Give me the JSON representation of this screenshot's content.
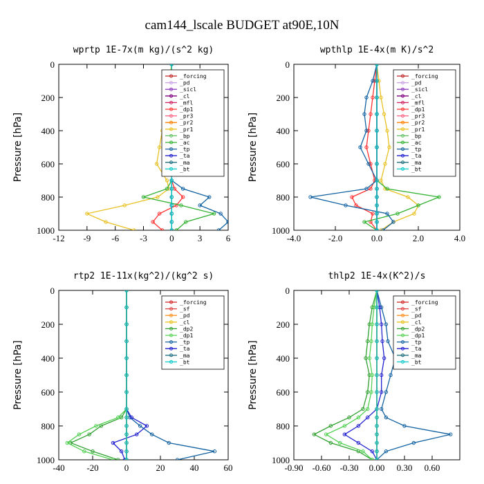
{
  "figure_title": "cam144_lscale  BUDGET at90E,10N",
  "chart_data": [
    {
      "type": "line",
      "title": "wprtp  1E-7x(m kg)/(s^2 kg)",
      "ylabel": "Pressure [hPa]",
      "xlim": [
        -12,
        6
      ],
      "ylim": [
        1000,
        0
      ],
      "xticks": [
        "-12",
        "-9",
        "-6",
        "-3",
        "0",
        "3",
        "6"
      ],
      "yticks": [
        "0",
        "200",
        "400",
        "600",
        "800",
        "1000"
      ],
      "legend_position": "top-right",
      "y": [
        0,
        100,
        200,
        300,
        400,
        500,
        600,
        700,
        750,
        800,
        850,
        900,
        950,
        1000
      ],
      "series": [
        {
          "name": "_forcing",
          "color": "#c02020",
          "values": [
            0,
            0,
            0,
            0,
            0,
            0,
            0,
            0,
            0,
            0,
            0,
            0,
            0,
            0
          ]
        },
        {
          "name": "_pd",
          "color": "#c8a0e8",
          "values": [
            0,
            0,
            0,
            0,
            0,
            0,
            0,
            0,
            0,
            0,
            0,
            0,
            0,
            0
          ]
        },
        {
          "name": "_sicl",
          "color": "#9040c0",
          "values": [
            0,
            0,
            0,
            0,
            0,
            0,
            0,
            0,
            0,
            0,
            0,
            0,
            0,
            0
          ]
        },
        {
          "name": "_cl",
          "color": "#800080",
          "values": [
            0,
            0,
            0,
            0,
            0,
            0,
            0,
            0,
            0,
            0,
            0,
            0,
            0,
            0
          ]
        },
        {
          "name": "_mfl",
          "color": "#d02060",
          "values": [
            0,
            0,
            0,
            0,
            0,
            0,
            0,
            0,
            0,
            0,
            0,
            0,
            0,
            0
          ]
        },
        {
          "name": "_dp1",
          "color": "#ff3030",
          "values": [
            0,
            0,
            0,
            0,
            0,
            0,
            0,
            0,
            0.3,
            1.2,
            0.5,
            -1.3,
            -2,
            -1
          ]
        },
        {
          "name": "_pr3",
          "color": "#ff6080",
          "values": [
            0,
            0,
            0,
            0,
            0,
            0,
            0,
            0,
            0,
            0,
            0,
            0,
            0,
            0
          ]
        },
        {
          "name": "_pr2",
          "color": "#ff8000",
          "values": [
            0,
            0,
            0,
            0,
            0,
            0,
            0,
            0,
            0,
            0,
            0,
            0,
            0,
            0
          ]
        },
        {
          "name": "_pr1",
          "color": "#e8c020",
          "values": [
            0,
            -0.3,
            -0.5,
            -0.7,
            -1,
            -1.3,
            -1.6,
            -0.5,
            -0.3,
            -1.5,
            -5,
            -9,
            -7,
            -4
          ]
        },
        {
          "name": "_bp",
          "color": "#60c060",
          "values": [
            0,
            0,
            0,
            0,
            0,
            0,
            0,
            0,
            0,
            0,
            0,
            0,
            0,
            0
          ]
        },
        {
          "name": "_ac",
          "color": "#30b030",
          "values": [
            0,
            0,
            0,
            0,
            0,
            0,
            0,
            0,
            -0.5,
            -3,
            1,
            4.5,
            1.5,
            0.5
          ]
        },
        {
          "name": "_tp",
          "color": "#1060a0",
          "values": [
            0,
            0,
            0,
            0,
            0,
            0,
            0,
            0,
            1.2,
            4,
            3,
            5.2,
            6,
            5
          ]
        },
        {
          "name": "_ta",
          "color": "#2020d0",
          "values": [
            0,
            0,
            0,
            0,
            0,
            0,
            0,
            0,
            0,
            0,
            0,
            0,
            0,
            0
          ]
        },
        {
          "name": "_ma",
          "color": "#207080",
          "values": [
            0,
            0,
            0,
            0,
            0,
            0,
            0,
            0,
            0,
            0,
            0,
            0,
            0,
            0
          ]
        },
        {
          "name": "_bt",
          "color": "#00c8c8",
          "values": [
            0,
            0,
            0,
            0,
            0,
            0,
            0,
            0,
            0,
            0,
            0,
            0,
            0,
            0
          ]
        }
      ]
    },
    {
      "type": "line",
      "title": "wpthlp  1E-4x(m K)/s^2",
      "ylabel": "Pressure [hPa]",
      "xlim": [
        -4,
        4
      ],
      "ylim": [
        1000,
        0
      ],
      "xticks": [
        "-4.0",
        "-2.0",
        "0.0",
        "2.0",
        "4.0"
      ],
      "yticks": [
        "0",
        "200",
        "400",
        "600",
        "800",
        "1000"
      ],
      "legend_position": "top-right",
      "y": [
        0,
        100,
        200,
        300,
        400,
        500,
        600,
        700,
        750,
        800,
        850,
        900,
        950,
        1000
      ],
      "series": [
        {
          "name": "_forcing",
          "color": "#c02020",
          "values": [
            0,
            0,
            0,
            0,
            0,
            0,
            0,
            0,
            0,
            0,
            0,
            0,
            0,
            0
          ]
        },
        {
          "name": "_pd",
          "color": "#c8a0e8",
          "values": [
            0,
            0,
            0,
            0,
            0,
            0,
            0,
            0,
            0,
            0,
            0,
            0,
            0,
            0
          ]
        },
        {
          "name": "_sicl",
          "color": "#9040c0",
          "values": [
            0,
            0,
            0,
            0,
            0,
            0,
            0,
            0,
            0,
            0,
            0,
            0,
            0,
            0
          ]
        },
        {
          "name": "_cl",
          "color": "#800080",
          "values": [
            0,
            0,
            0,
            0,
            0,
            0,
            0,
            0,
            0,
            0,
            0,
            0,
            0,
            0
          ]
        },
        {
          "name": "_mfl",
          "color": "#d02060",
          "values": [
            0,
            0,
            0,
            0,
            0,
            0,
            0,
            0,
            0,
            0,
            0,
            0,
            0,
            0
          ]
        },
        {
          "name": "_dp1",
          "color": "#ff3030",
          "values": [
            0,
            -0.1,
            -0.2,
            -0.3,
            -0.4,
            -0.5,
            -0.3,
            -0.1,
            -0.3,
            -1.2,
            -1,
            -0.2,
            -0.3,
            0
          ]
        },
        {
          "name": "_pr3",
          "color": "#ff6080",
          "values": [
            0,
            0,
            0,
            0,
            0,
            0,
            0,
            0,
            0,
            0,
            0,
            0,
            0,
            0
          ]
        },
        {
          "name": "_pr2",
          "color": "#ff8000",
          "values": [
            0,
            0,
            0,
            0,
            0,
            0,
            0,
            0,
            0,
            0,
            0,
            0,
            0,
            0
          ]
        },
        {
          "name": "_pr1",
          "color": "#e8c020",
          "values": [
            0,
            0.1,
            0.2,
            0.35,
            0.5,
            0.6,
            0.4,
            0.2,
            0.4,
            1.5,
            2,
            1.8,
            0.8,
            0.2
          ]
        },
        {
          "name": "_bp",
          "color": "#60c060",
          "values": [
            0,
            0,
            0,
            0,
            0,
            0,
            0,
            0,
            0,
            0,
            0,
            0,
            0,
            0
          ]
        },
        {
          "name": "_ac",
          "color": "#30b030",
          "values": [
            0,
            0,
            0,
            0,
            0,
            0,
            0,
            0,
            0.5,
            3,
            2,
            1,
            -0.6,
            0
          ]
        },
        {
          "name": "_tp",
          "color": "#1060a0",
          "values": [
            0,
            -0.2,
            -0.5,
            -0.6,
            -0.5,
            -0.8,
            -0.4,
            0,
            -0.5,
            -3.2,
            -1.5,
            0.5,
            0.8,
            0.3
          ]
        },
        {
          "name": "_ta",
          "color": "#2020d0",
          "values": [
            0,
            0,
            0,
            0,
            0,
            0,
            0,
            0,
            0,
            0,
            0,
            0,
            0,
            0
          ]
        },
        {
          "name": "_ma",
          "color": "#207080",
          "values": [
            0,
            0,
            0,
            0,
            0,
            0,
            0,
            0,
            0,
            0,
            0,
            0,
            0,
            0
          ]
        },
        {
          "name": "_bt",
          "color": "#00c8c8",
          "values": [
            0,
            0,
            0,
            0,
            0,
            0,
            0,
            0,
            0,
            0,
            0,
            0,
            0,
            0
          ]
        }
      ]
    },
    {
      "type": "line",
      "title": "rtp2  1E-11x(kg^2)/(kg^2 s)",
      "ylabel": "Pressure [hPa]",
      "xlim": [
        -40,
        60
      ],
      "ylim": [
        1000,
        0
      ],
      "xticks": [
        "-40",
        "-20",
        "0",
        "20",
        "40",
        "60"
      ],
      "yticks": [
        "0",
        "200",
        "400",
        "600",
        "800",
        "1000"
      ],
      "legend_position": "top-right",
      "y": [
        0,
        100,
        200,
        300,
        400,
        500,
        600,
        700,
        750,
        800,
        850,
        900,
        950,
        1000
      ],
      "series": [
        {
          "name": "_forcing",
          "color": "#d02020",
          "values": [
            0,
            0,
            0,
            0,
            0,
            0,
            0,
            0,
            0,
            0,
            0,
            0,
            0,
            0
          ]
        },
        {
          "name": "_sf",
          "color": "#e04040",
          "values": [
            0,
            0,
            0,
            0,
            0,
            0,
            0,
            0,
            0,
            0,
            0,
            0,
            0,
            0
          ]
        },
        {
          "name": "_pd",
          "color": "#ff9020",
          "values": [
            0,
            0,
            0,
            0,
            0,
            0,
            0,
            0,
            0,
            0,
            0,
            0,
            0,
            0
          ]
        },
        {
          "name": "_cl",
          "color": "#e8c020",
          "values": [
            0,
            0,
            0,
            0,
            0,
            0,
            0,
            0,
            0,
            0,
            0,
            0,
            0,
            0
          ]
        },
        {
          "name": "_dp2",
          "color": "#30a030",
          "values": [
            0,
            0,
            0,
            0,
            0,
            0,
            0,
            0,
            -3,
            -15,
            -22,
            -33,
            -20,
            -5
          ]
        },
        {
          "name": "_dp1",
          "color": "#50d050",
          "values": [
            0,
            0,
            0,
            0,
            0,
            0,
            0,
            0,
            -5,
            -18,
            -28,
            -35,
            -25,
            -8
          ]
        },
        {
          "name": "_tp",
          "color": "#1060a0",
          "values": [
            0,
            0,
            0,
            0,
            0,
            0,
            0,
            0,
            2,
            8,
            15,
            25,
            52,
            30
          ]
        },
        {
          "name": "_ta",
          "color": "#2020d0",
          "values": [
            0,
            0,
            0,
            0,
            0,
            0,
            0,
            0,
            3,
            12,
            6,
            -8,
            -3,
            -1
          ]
        },
        {
          "name": "_ma",
          "color": "#207080",
          "values": [
            0,
            0,
            0,
            0,
            0,
            0,
            0,
            0,
            0,
            0,
            0,
            0,
            0,
            0
          ]
        },
        {
          "name": "_bt",
          "color": "#00c8c8",
          "values": [
            0,
            0,
            0,
            0,
            0,
            0,
            0,
            0,
            0,
            0,
            0,
            0,
            0,
            0
          ]
        }
      ]
    },
    {
      "type": "line",
      "title": "thlp2  1E-4x(K^2)/s",
      "ylabel": "Pressure [hPa]",
      "xlim": [
        -0.9,
        0.9
      ],
      "ylim": [
        1000,
        0
      ],
      "xticks": [
        "-0.90",
        "-0.60",
        "-0.30",
        "0.00",
        "0.30",
        "0.60"
      ],
      "yticks": [
        "0",
        "200",
        "400",
        "600",
        "800",
        "1000"
      ],
      "legend_position": "top-right",
      "y": [
        0,
        100,
        200,
        300,
        400,
        500,
        600,
        700,
        750,
        800,
        850,
        900,
        950,
        1000
      ],
      "series": [
        {
          "name": "_forcing",
          "color": "#d02020",
          "values": [
            0,
            0,
            0,
            0,
            0,
            0,
            0,
            0,
            0,
            0,
            0,
            0,
            0,
            0
          ]
        },
        {
          "name": "_sf",
          "color": "#e04040",
          "values": [
            0,
            0,
            0,
            0,
            0,
            0,
            0,
            0,
            0,
            0,
            0,
            0,
            0,
            0
          ]
        },
        {
          "name": "_pd",
          "color": "#ff9020",
          "values": [
            0,
            0,
            0,
            0,
            0,
            0,
            0,
            0,
            0,
            0,
            0,
            0,
            0,
            0
          ]
        },
        {
          "name": "_cl",
          "color": "#e8c020",
          "values": [
            0,
            0,
            0,
            0,
            0,
            0,
            0,
            0,
            0,
            0,
            0,
            0,
            0,
            0
          ]
        },
        {
          "name": "_dp2",
          "color": "#30a030",
          "values": [
            0,
            -0.05,
            -0.08,
            -0.1,
            -0.12,
            -0.08,
            -0.1,
            -0.15,
            -0.3,
            -0.5,
            -0.68,
            -0.5,
            -0.2,
            -0.05
          ]
        },
        {
          "name": "_dp1",
          "color": "#50d050",
          "values": [
            0,
            -0.03,
            -0.05,
            -0.06,
            -0.08,
            -0.05,
            -0.06,
            -0.1,
            -0.2,
            -0.35,
            -0.55,
            -0.4,
            -0.15,
            -0.05
          ]
        },
        {
          "name": "_tp",
          "color": "#1060a0",
          "values": [
            0,
            0.05,
            0.1,
            0.12,
            0.2,
            0.15,
            0.1,
            0.05,
            0.1,
            0.3,
            0.8,
            0.4,
            0.1,
            0
          ]
        },
        {
          "name": "_ta",
          "color": "#2020d0",
          "values": [
            0,
            0.03,
            0.05,
            0.06,
            0.08,
            0.05,
            0.05,
            0,
            -0.1,
            -0.2,
            -0.35,
            -0.2,
            -0.05,
            0
          ]
        },
        {
          "name": "_ma",
          "color": "#207080",
          "values": [
            0,
            0,
            0,
            0,
            0,
            0,
            0,
            0,
            0,
            0,
            0,
            0,
            0,
            0
          ]
        },
        {
          "name": "_bt",
          "color": "#00c8c8",
          "values": [
            0,
            0,
            0,
            0,
            0,
            0,
            0,
            0,
            0,
            0,
            0,
            0,
            0,
            0
          ]
        }
      ]
    }
  ]
}
